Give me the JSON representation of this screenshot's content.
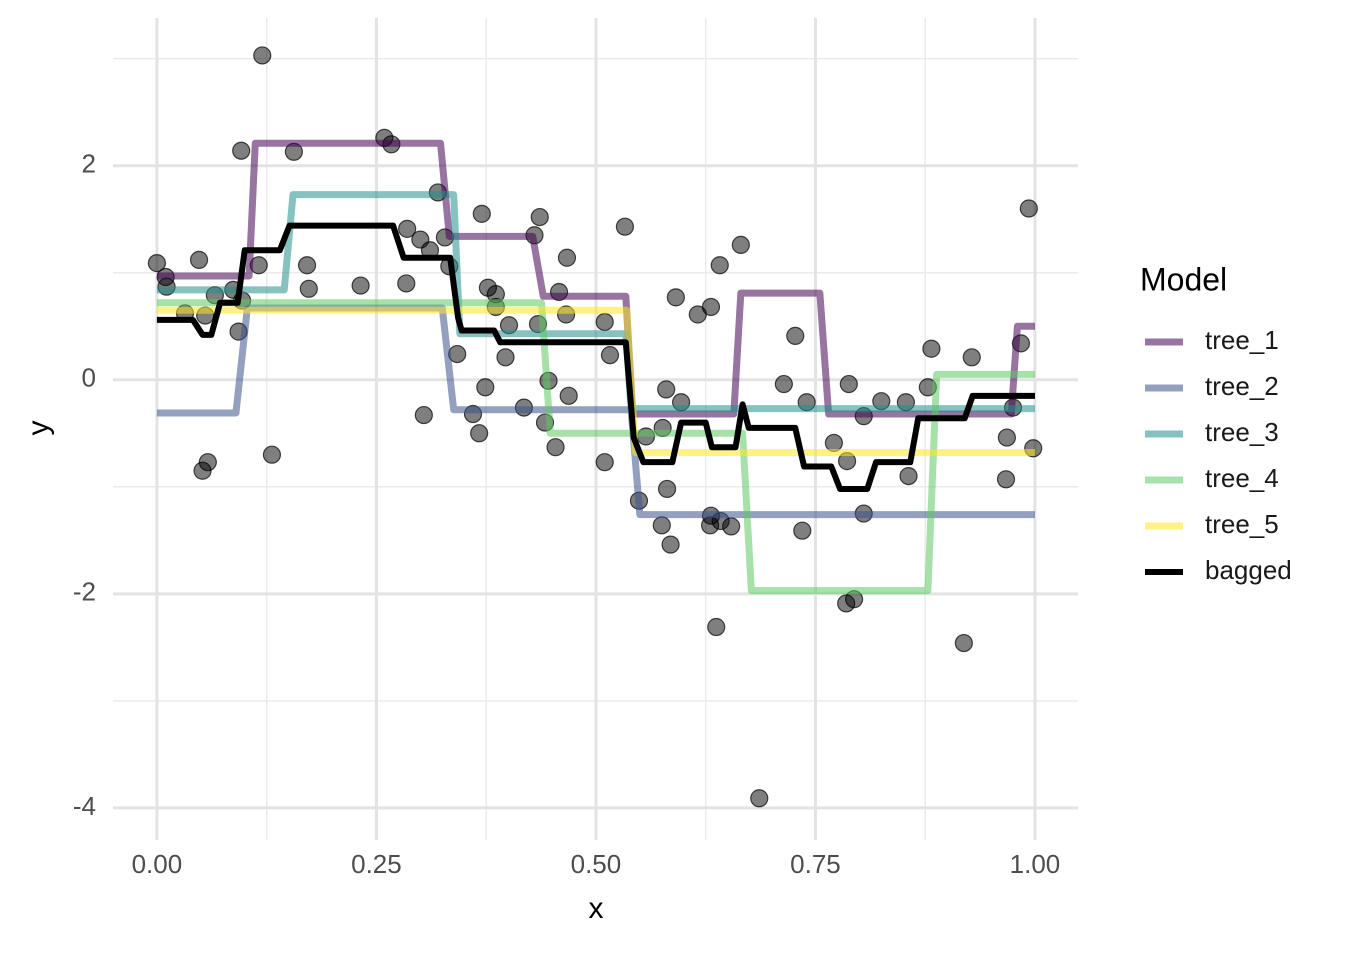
{
  "chart_data": {
    "type": "line",
    "x_label": "x",
    "y_label": "y",
    "legend_title": "Model",
    "legend": "right",
    "grid": true,
    "line_alpha": 0.55,
    "xlim": [
      -0.05,
      1.049
    ],
    "ylim": [
      -4.3,
      3.38
    ],
    "xticks": [
      {
        "value": 0,
        "label": "0.00"
      },
      {
        "value": 0.25,
        "label": "0.25"
      },
      {
        "value": 0.5,
        "label": "0.50"
      },
      {
        "value": 0.75,
        "label": "0.75"
      },
      {
        "value": 1,
        "label": "1.00"
      }
    ],
    "yticks": [
      -4,
      -2,
      0,
      2
    ],
    "xminor": [
      0.125,
      0.375,
      0.625,
      0.875
    ],
    "yminor": [
      -3,
      -1,
      1,
      3
    ],
    "points": {
      "color": "#000000",
      "alpha": 0.5,
      "x": [
        0,
        0.01,
        0.011,
        0.032,
        0.048,
        0.052,
        0.058,
        0.055,
        0.066,
        0.087,
        0.093,
        0.096,
        0.097,
        0.116,
        0.12,
        0.131,
        0.156,
        0.171,
        0.173,
        0.232,
        0.259,
        0.267,
        0.284,
        0.285,
        0.3,
        0.304,
        0.311,
        0.32,
        0.328,
        0.333,
        0.342,
        0.36,
        0.367,
        0.37,
        0.374,
        0.377,
        0.386,
        0.386,
        0.397,
        0.401,
        0.418,
        0.43,
        0.434,
        0.436,
        0.442,
        0.446,
        0.454,
        0.458,
        0.466,
        0.467,
        0.469,
        0.51,
        0.51,
        0.516,
        0.533,
        0.549,
        0.557,
        0.575,
        0.576,
        0.58,
        0.581,
        0.585,
        0.591,
        0.597,
        0.616,
        0.63,
        0.631,
        0.631,
        0.637,
        0.641,
        0.642,
        0.654,
        0.665,
        0.686,
        0.714,
        0.727,
        0.735,
        0.74,
        0.771,
        0.785,
        0.786,
        0.788,
        0.794,
        0.805,
        0.805,
        0.825,
        0.853,
        0.856,
        0.878,
        0.882,
        0.919,
        0.928,
        0.967,
        0.968,
        0.975,
        0.984,
        0.993,
        0.998
      ],
      "y": [
        1.09,
        0.96,
        0.87,
        0.62,
        1.12,
        -0.85,
        -0.77,
        0.6,
        0.79,
        0.84,
        0.45,
        2.14,
        0.74,
        1.07,
        3.03,
        -0.7,
        2.13,
        1.07,
        0.85,
        0.88,
        2.26,
        2.2,
        0.9,
        1.41,
        1.31,
        -0.33,
        1.21,
        1.75,
        1.33,
        1.06,
        0.24,
        -0.32,
        -0.5,
        1.55,
        -0.07,
        0.86,
        0.8,
        0.68,
        0.21,
        0.51,
        -0.26,
        1.35,
        0.52,
        1.52,
        -0.4,
        -0.01,
        -0.63,
        0.82,
        0.61,
        1.14,
        -0.15,
        0.54,
        -0.77,
        0.23,
        1.43,
        -1.13,
        -0.53,
        -1.36,
        -0.45,
        -0.09,
        -1.02,
        -1.54,
        0.77,
        -0.21,
        0.61,
        -1.36,
        0.68,
        -1.27,
        -2.31,
        1.07,
        -1.32,
        -1.37,
        1.26,
        -3.91,
        -0.04,
        0.41,
        -1.41,
        -0.21,
        -0.59,
        -2.09,
        -0.76,
        -0.04,
        -2.05,
        -1.25,
        -0.34,
        -0.2,
        -0.21,
        -0.9,
        -0.07,
        0.29,
        -2.46,
        0.21,
        -0.93,
        -0.54,
        -0.26,
        0.34,
        1.6,
        -0.64
      ]
    },
    "series": [
      {
        "name": "tree_1",
        "color": "#440154",
        "x": [
          0,
          0.105,
          0.112,
          0.323,
          0.333,
          0.428,
          0.44,
          0.534,
          0.542,
          0.657,
          0.665,
          0.755,
          0.765,
          0.973,
          0.98,
          1.0
        ],
        "values": [
          0.97,
          0.97,
          2.21,
          2.21,
          1.34,
          1.34,
          0.78,
          0.78,
          -0.32,
          -0.32,
          0.81,
          0.81,
          -0.32,
          -0.32,
          0.5,
          0.5
        ]
      },
      {
        "name": "tree_2",
        "color": "#3B528B",
        "x": [
          0,
          0.09,
          0.103,
          0.325,
          0.338,
          0.54,
          0.55,
          1.0
        ],
        "values": [
          -0.31,
          -0.31,
          0.67,
          0.67,
          -0.28,
          -0.28,
          -1.26,
          -1.26
        ]
      },
      {
        "name": "tree_3",
        "color": "#21908C",
        "x": [
          0,
          0.145,
          0.155,
          0.338,
          0.345,
          0.534,
          0.54,
          1.0
        ],
        "values": [
          0.84,
          0.84,
          1.73,
          1.73,
          0.43,
          0.43,
          -0.27,
          -0.27
        ]
      },
      {
        "name": "tree_4",
        "color": "#5DC863",
        "x": [
          0,
          0.438,
          0.448,
          0.667,
          0.677,
          0.878,
          0.888,
          1.0
        ],
        "values": [
          0.72,
          0.72,
          -0.5,
          -0.5,
          -1.97,
          -1.97,
          0.05,
          0.05
        ]
      },
      {
        "name": "tree_5",
        "color": "#FDE725",
        "x": [
          0,
          0.535,
          0.545,
          1.0
        ],
        "values": [
          0.65,
          0.65,
          -0.68,
          -0.68
        ]
      },
      {
        "name": "bagged",
        "color": "#000000",
        "width": 6,
        "alpha": 1,
        "x": [
          0,
          0.041,
          0.052,
          0.062,
          0.072,
          0.092,
          0.1,
          0.14,
          0.151,
          0.269,
          0.281,
          0.334,
          0.343,
          0.347,
          0.384,
          0.391,
          0.534,
          0.543,
          0.554,
          0.587,
          0.597,
          0.625,
          0.632,
          0.659,
          0.667,
          0.674,
          0.727,
          0.737,
          0.768,
          0.778,
          0.809,
          0.819,
          0.858,
          0.867,
          0.92,
          0.929,
          1.0
        ],
        "values": [
          0.56,
          0.56,
          0.42,
          0.42,
          0.72,
          0.72,
          1.21,
          1.21,
          1.44,
          1.44,
          1.14,
          1.14,
          0.58,
          0.46,
          0.46,
          0.35,
          0.35,
          -0.54,
          -0.77,
          -0.77,
          -0.4,
          -0.4,
          -0.63,
          -0.63,
          -0.23,
          -0.45,
          -0.45,
          -0.81,
          -0.81,
          -1.02,
          -1.02,
          -0.77,
          -0.77,
          -0.36,
          -0.36,
          -0.15,
          -0.15
        ]
      }
    ]
  }
}
